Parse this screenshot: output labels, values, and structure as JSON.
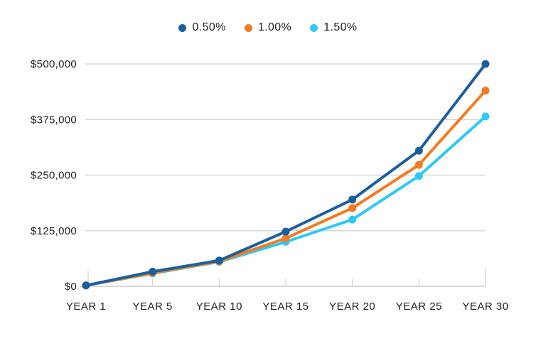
{
  "chart_data": {
    "type": "line",
    "title": "",
    "categories": [
      "YEAR 1",
      "YEAR 5",
      "YEAR 10",
      "YEAR 15",
      "YEAR 20",
      "YEAR 25",
      "YEAR 30"
    ],
    "series": [
      {
        "name": "0.50%",
        "color": "#1b5e9e",
        "values": [
          2000,
          33000,
          58000,
          123000,
          195000,
          305000,
          500000
        ]
      },
      {
        "name": "1.00%",
        "color": "#f47b20",
        "values": [
          2000,
          30000,
          56000,
          108000,
          176000,
          273000,
          440000
        ]
      },
      {
        "name": "1.50%",
        "color": "#2ec9f5",
        "values": [
          2000,
          29000,
          55000,
          100000,
          150000,
          248000,
          382000
        ]
      }
    ],
    "y_ticks": [
      0,
      125000,
      250000,
      375000,
      500000
    ],
    "y_tick_labels": [
      "$0",
      "$125,000",
      "$250,000",
      "$375,000",
      "$500,000"
    ],
    "ylim": [
      0,
      500000
    ],
    "xlabel": "",
    "ylabel": "",
    "grid": "horizontal",
    "legend_position": "top"
  },
  "colors": {
    "grid": "#d8d8d8",
    "axis": "#d8d8d8",
    "text": "#1d1d1f",
    "background": "#ffffff"
  }
}
